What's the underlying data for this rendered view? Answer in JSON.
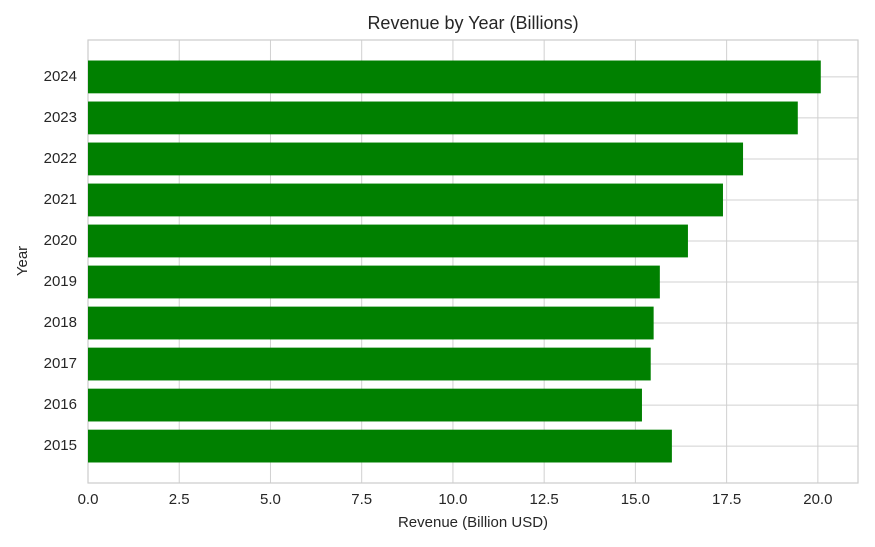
{
  "chart_data": {
    "type": "barh",
    "title": "Revenue by Year (Billions)",
    "x_label": "Revenue (Billion USD)",
    "y_label": "Year",
    "categories": [
      "2015",
      "2016",
      "2017",
      "2018",
      "2019",
      "2020",
      "2021",
      "2022",
      "2023",
      "2024"
    ],
    "values": [
      16.0,
      15.18,
      15.42,
      15.5,
      15.67,
      16.44,
      17.4,
      17.95,
      19.45,
      20.08
    ],
    "color": "#008000",
    "xlim": [
      0,
      21.1
    ],
    "xticks": [
      {
        "value": 0,
        "label": "0.0"
      },
      2.5,
      {
        "value": 5,
        "label": "5.0"
      },
      7.5,
      {
        "value": 10,
        "label": "10.0"
      },
      12.5,
      {
        "value": 15,
        "label": "15.0"
      },
      17.5,
      {
        "value": 20,
        "label": "20.0"
      }
    ],
    "grid": true
  }
}
